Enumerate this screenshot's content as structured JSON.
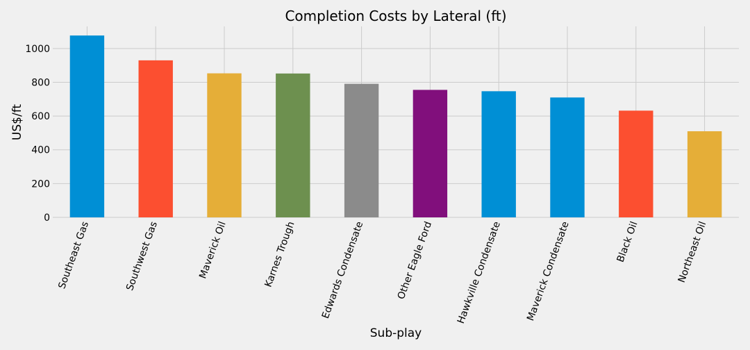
{
  "chart_data": {
    "type": "bar",
    "title": "Completion Costs by Lateral (ft)",
    "xlabel": "Sub-play",
    "ylabel": "US$/ft",
    "categories": [
      "Southeast Gas",
      "Southwest Gas",
      "Maverick Oil",
      "Karnes Trough",
      "Edwards Condensate",
      "Other Eagle Ford",
      "Hawkville Condensate",
      "Maverick Condensate",
      "Black Oil",
      "Northeast Oil"
    ],
    "values": [
      1077,
      930,
      853,
      852,
      791,
      755,
      747,
      710,
      632,
      510
    ],
    "colors": [
      "#008fd5",
      "#fc4f30",
      "#e5ae38",
      "#6d904f",
      "#8b8b8b",
      "#810f7c",
      "#008fd5",
      "#008fd5",
      "#fc4f30",
      "#e5ae38"
    ],
    "yticks": [
      0,
      200,
      400,
      600,
      800,
      1000
    ],
    "ylim": [
      0,
      1131
    ],
    "grid": true,
    "legend": "none",
    "background": "#f0f0f0",
    "grid_color": "#cbcbcb"
  }
}
